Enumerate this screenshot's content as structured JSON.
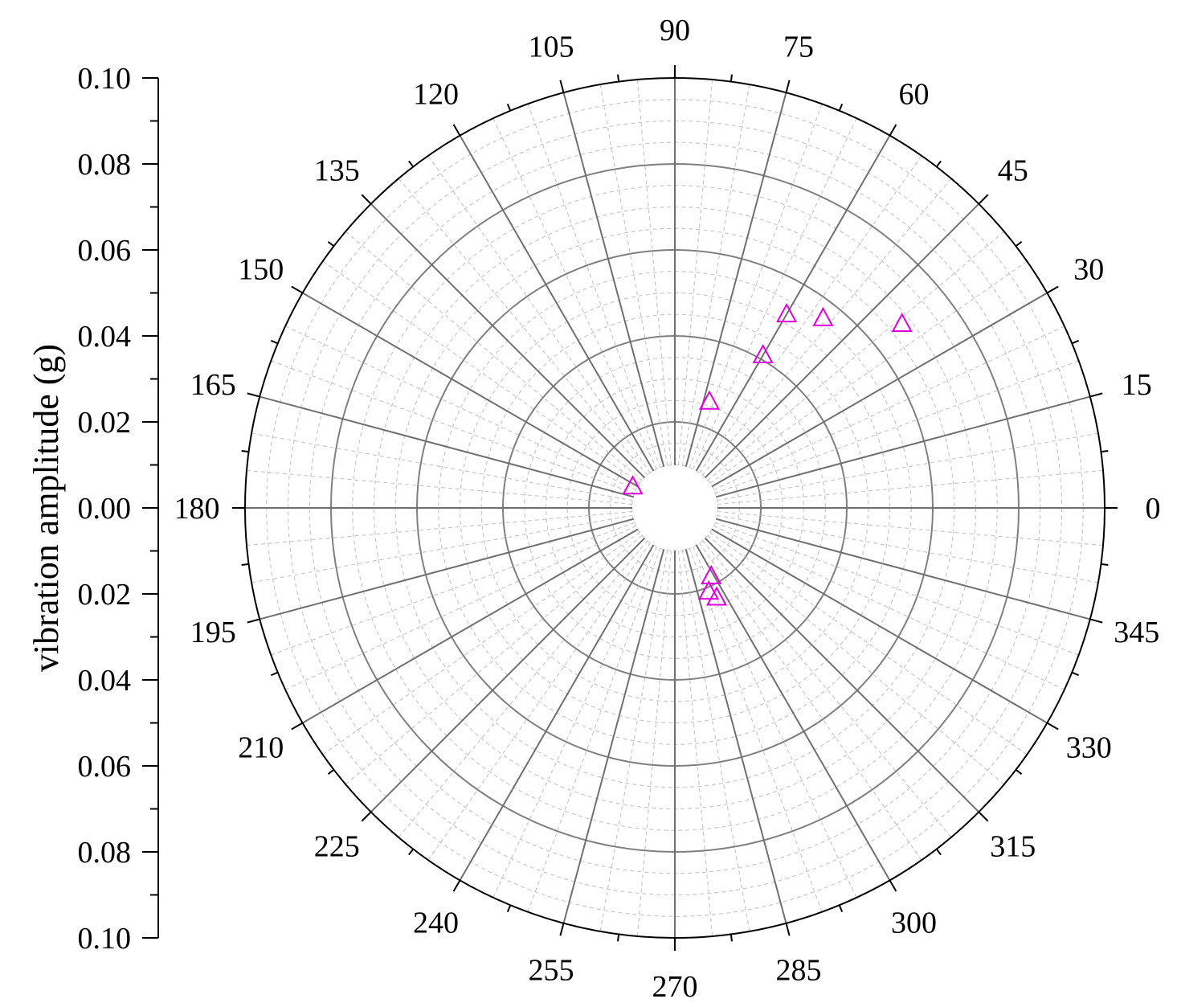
{
  "chart_data": {
    "type": "scatter",
    "subtype": "polar",
    "ylabel": "vibration amplitude (g)",
    "radial_axis": {
      "min": 0,
      "max": 0.1,
      "tick_labels_top": [
        "0.10",
        "0.08",
        "0.06",
        "0.04",
        "0.02",
        "0.00"
      ],
      "tick_labels_bottom": [
        "0.02",
        "0.04",
        "0.06",
        "0.08",
        "0.10"
      ]
    },
    "angular_axis": {
      "unit": "degrees",
      "zero_direction": "right",
      "direction": "counterclockwise",
      "labels": [
        "0",
        "15",
        "30",
        "45",
        "60",
        "75",
        "90",
        "105",
        "120",
        "135",
        "150",
        "165",
        "180",
        "195",
        "210",
        "225",
        "240",
        "255",
        "270",
        "285",
        "300",
        "315",
        "330",
        "345"
      ]
    },
    "grid": true,
    "marker": {
      "shape": "triangle-open",
      "color": "#e000e0"
    },
    "points": [
      {
        "angle": 72,
        "r": 0.026
      },
      {
        "angle": 60,
        "r": 0.041
      },
      {
        "angle": 60,
        "r": 0.052
      },
      {
        "angle": 52,
        "r": 0.056
      },
      {
        "angle": 39,
        "r": 0.068
      },
      {
        "angle": 153,
        "r": 0.011
      },
      {
        "angle": 298,
        "r": 0.018
      },
      {
        "angle": 292,
        "r": 0.021
      },
      {
        "angle": 295,
        "r": 0.023
      }
    ]
  }
}
